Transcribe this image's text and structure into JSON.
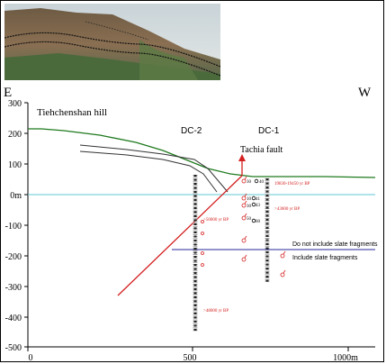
{
  "figure": {
    "orientation_left": "E",
    "orientation_right": "W",
    "hill_label": "Tiehchenshan hill",
    "fault_label": "Tachia fault",
    "borehole_labels": [
      "DC-2",
      "DC-1"
    ],
    "legend": {
      "line1": "Do not include slate fragments",
      "line2": "Include slate fragments"
    },
    "dates": [
      "19830-19450 yr BP",
      ">43000 yr BP",
      ">50000 yr BP",
      ">48000 yr BP"
    ],
    "sample_numbers": [
      "30",
      "40",
      "41",
      "43",
      "10",
      "30",
      "50",
      "60"
    ],
    "y_ticks": [
      "300",
      "200",
      "100",
      "0m",
      "-100",
      "-200",
      "-300",
      "-400",
      "-500"
    ],
    "x_ticks": [
      "0",
      "500",
      "1000m"
    ],
    "colors": {
      "topography": "#1f7a1f",
      "fault": "#d42020",
      "water_level": "#5fc8d6",
      "slate_boundary": "#2a2a9a",
      "date_text": "#d42020"
    }
  }
}
